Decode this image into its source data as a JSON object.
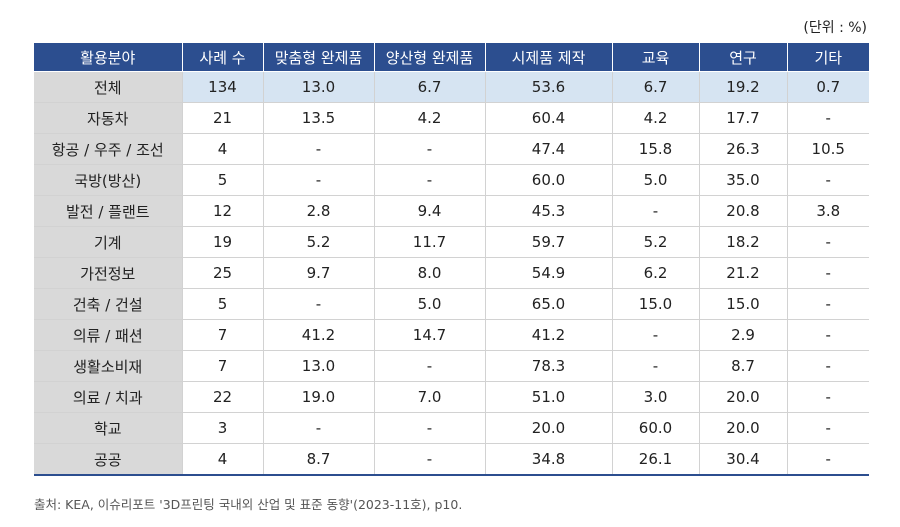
{
  "unit_label": "(단위 : %)",
  "headers": [
    "활용분야",
    "사례 수",
    "맞춤형 완제품",
    "양산형 완제품",
    "시제품 제작",
    "교육",
    "연구",
    "기타"
  ],
  "rows": [
    [
      "전체",
      "134",
      "13.0",
      "6.7",
      "53.6",
      "6.7",
      "19.2",
      "0.7"
    ],
    [
      "자동차",
      "21",
      "13.5",
      "4.2",
      "60.4",
      "4.2",
      "17.7",
      "-"
    ],
    [
      "항공 / 우주 / 조선",
      "4",
      "-",
      "-",
      "47.4",
      "15.8",
      "26.3",
      "10.5"
    ],
    [
      "국방(방산)",
      "5",
      "-",
      "-",
      "60.0",
      "5.0",
      "35.0",
      "-"
    ],
    [
      "발전 / 플랜트",
      "12",
      "2.8",
      "9.4",
      "45.3",
      "-",
      "20.8",
      "3.8"
    ],
    [
      "기계",
      "19",
      "5.2",
      "11.7",
      "59.7",
      "5.2",
      "18.2",
      "-"
    ],
    [
      "가전정보",
      "25",
      "9.7",
      "8.0",
      "54.9",
      "6.2",
      "21.2",
      "-"
    ],
    [
      "건축 / 건설",
      "5",
      "-",
      "5.0",
      "65.0",
      "15.0",
      "15.0",
      "-"
    ],
    [
      "의류 / 패션",
      "7",
      "41.2",
      "14.7",
      "41.2",
      "-",
      "2.9",
      "-"
    ],
    [
      "생활소비재",
      "7",
      "13.0",
      "-",
      "78.3",
      "-",
      "8.7",
      "-"
    ],
    [
      "의료 / 치과",
      "22",
      "19.0",
      "7.0",
      "51.0",
      "3.0",
      "20.0",
      "-"
    ],
    [
      "학교",
      "3",
      "-",
      "-",
      "20.0",
      "60.0",
      "20.0",
      "-"
    ],
    [
      "공공",
      "4",
      "8.7",
      "-",
      "34.8",
      "26.1",
      "30.4",
      "-"
    ]
  ],
  "source": "출처: KEA, 이슈리포트 '3D프린팅 국내외 산업 및 표준 동향'(2023-11호), p10.",
  "colors": {
    "header_bg": "#2c4e8f",
    "total_row_bg": "#d6e4f2",
    "label_col_bg": "#d9d9d9"
  }
}
